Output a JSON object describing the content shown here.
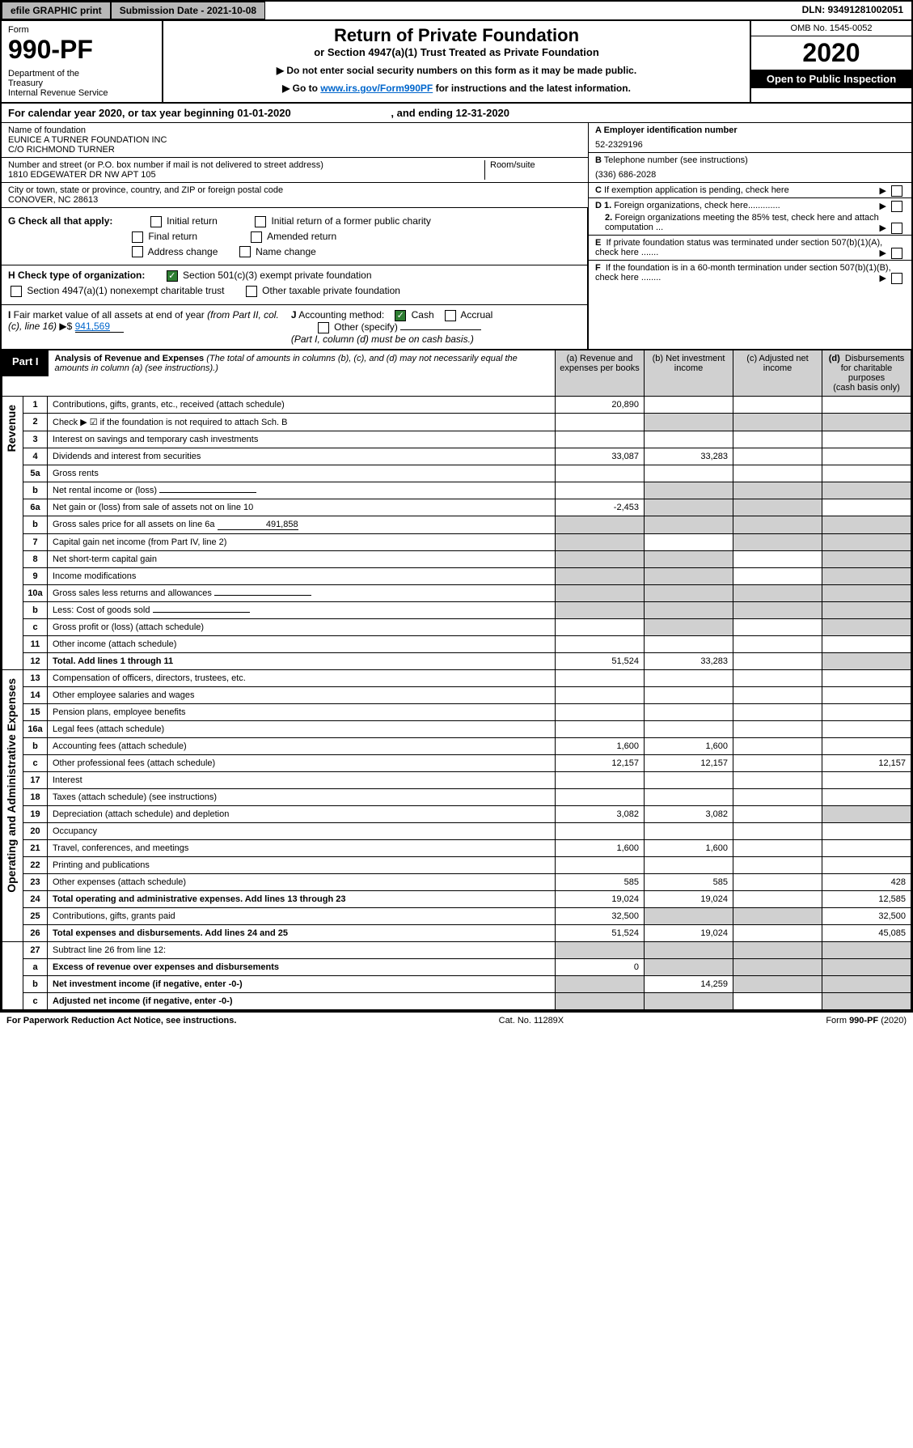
{
  "topbar": {
    "efile": "efile GRAPHIC print",
    "subdate": "Submission Date - 2021-10-08",
    "dln": "DLN: 93491281002051"
  },
  "header": {
    "form_label": "Form",
    "form_num": "990-PF",
    "dept": "Department of the Treasury\nInternal Revenue Service",
    "title": "Return of Private Foundation",
    "subtitle": "or Section 4947(a)(1) Trust Treated as Private Foundation",
    "note1": "▶ Do not enter social security numbers on this form as it may be made public.",
    "note2": "▶ Go to ",
    "link": "www.irs.gov/Form990PF",
    "note3": " for instructions and the latest information.",
    "omb": "OMB No. 1545-0052",
    "year": "2020",
    "open": "Open to Public Inspection"
  },
  "calyear": {
    "text1": "For calendar year 2020, or tax year beginning 01-01-2020",
    "text2": ", and ending 12-31-2020"
  },
  "info": {
    "name_label": "Name of foundation",
    "name": "EUNICE A TURNER FOUNDATION INC\nC/O RICHMOND TURNER",
    "addr_label": "Number and street (or P.O. box number if mail is not delivered to street address)",
    "addr": "1810 EDGEWATER DR NW APT 105",
    "room_label": "Room/suite",
    "city_label": "City or town, state or province, country, and ZIP or foreign postal code",
    "city": "CONOVER, NC  28613",
    "a_label": "A Employer identification number",
    "a_val": "52-2329196",
    "b_label": "B Telephone number (see instructions)",
    "b_val": "(336) 686-2028",
    "c_label": "C If exemption application is pending, check here",
    "d1": "D 1. Foreign organizations, check here.............",
    "d2": "2. Foreign organizations meeting the 85% test, check here and attach computation ...",
    "e": "E  If private foundation status was terminated under section 507(b)(1)(A), check here .......",
    "f": "F  If the foundation is in a 60-month termination under section 507(b)(1)(B), check here ........"
  },
  "g": {
    "label": "G Check all that apply:",
    "opts": [
      "Initial return",
      "Initial return of a former public charity",
      "Final return",
      "Amended return",
      "Address change",
      "Name change"
    ]
  },
  "h": {
    "label": "H Check type of organization:",
    "opt1": "Section 501(c)(3) exempt private foundation",
    "opt2": "Section 4947(a)(1) nonexempt charitable trust",
    "opt3": "Other taxable private foundation"
  },
  "i": {
    "label": "I Fair market value of all assets at end of year (from Part II, col. (c), line 16) ▶$",
    "val": "941,569"
  },
  "j": {
    "label": "J Accounting method:",
    "cash": "Cash",
    "accrual": "Accrual",
    "other": "Other (specify)",
    "note": "(Part I, column (d) must be on cash basis.)"
  },
  "part1": {
    "label": "Part I",
    "title": "Analysis of Revenue and Expenses",
    "subtitle": "(The total of amounts in columns (b), (c), and (d) may not necessarily equal the amounts in column (a) (see instructions).)",
    "col_a": "(a)    Revenue and expenses per books",
    "col_b": "(b)  Net investment income",
    "col_c": "(c)  Adjusted net income",
    "col_d": "(d)  Disbursements for charitable purposes (cash basis only)"
  },
  "sections": {
    "revenue": "Revenue",
    "expenses": "Operating and Administrative Expenses"
  },
  "lines": [
    {
      "n": "1",
      "d": "Contributions, gifts, grants, etc., received (attach schedule)",
      "a": "20,890",
      "b": "",
      "c": "",
      "ds": ""
    },
    {
      "n": "2",
      "d": "Check ▶ ☑ if the foundation is not required to attach Sch. B",
      "a": "",
      "b": "",
      "c": "",
      "ds": "",
      "shb": true,
      "shc": true,
      "shd": true
    },
    {
      "n": "3",
      "d": "Interest on savings and temporary cash investments",
      "a": "",
      "b": "",
      "c": "",
      "ds": ""
    },
    {
      "n": "4",
      "d": "Dividends and interest from securities",
      "a": "33,087",
      "b": "33,283",
      "c": "",
      "ds": ""
    },
    {
      "n": "5a",
      "d": "Gross rents",
      "a": "",
      "b": "",
      "c": "",
      "ds": ""
    },
    {
      "n": "b",
      "d": "Net rental income or (loss)",
      "a": "",
      "b": "",
      "c": "",
      "ds": "",
      "shb": true,
      "shc": true,
      "shd": true,
      "inline": true
    },
    {
      "n": "6a",
      "d": "Net gain or (loss) from sale of assets not on line 10",
      "a": "-2,453",
      "b": "",
      "c": "",
      "ds": "",
      "shb": true,
      "shc": true
    },
    {
      "n": "b",
      "d": "Gross sales price for all assets on line 6a",
      "inline_val": "491,858",
      "a": "",
      "b": "",
      "c": "",
      "ds": "",
      "shb": true,
      "shc": true,
      "shd": true,
      "sha": true
    },
    {
      "n": "7",
      "d": "Capital gain net income (from Part IV, line 2)",
      "a": "",
      "b": "",
      "c": "",
      "ds": "",
      "sha": true,
      "shc": true,
      "shd": true
    },
    {
      "n": "8",
      "d": "Net short-term capital gain",
      "a": "",
      "b": "",
      "c": "",
      "ds": "",
      "sha": true,
      "shb": true,
      "shd": true
    },
    {
      "n": "9",
      "d": "Income modifications",
      "a": "",
      "b": "",
      "c": "",
      "ds": "",
      "sha": true,
      "shb": true,
      "shd": true
    },
    {
      "n": "10a",
      "d": "Gross sales less returns and allowances",
      "a": "",
      "b": "",
      "c": "",
      "ds": "",
      "sha": true,
      "shb": true,
      "shc": true,
      "shd": true,
      "inline": true
    },
    {
      "n": "b",
      "d": "Less: Cost of goods sold",
      "a": "",
      "b": "",
      "c": "",
      "ds": "",
      "sha": true,
      "shb": true,
      "shc": true,
      "shd": true,
      "inline": true
    },
    {
      "n": "c",
      "d": "Gross profit or (loss) (attach schedule)",
      "a": "",
      "b": "",
      "c": "",
      "ds": "",
      "shb": true,
      "shd": true
    },
    {
      "n": "11",
      "d": "Other income (attach schedule)",
      "a": "",
      "b": "",
      "c": "",
      "ds": ""
    },
    {
      "n": "12",
      "d": "Total. Add lines 1 through 11",
      "a": "51,524",
      "b": "33,283",
      "c": "",
      "ds": "",
      "bold": true,
      "shd": true
    }
  ],
  "exp_lines": [
    {
      "n": "13",
      "d": "Compensation of officers, directors, trustees, etc.",
      "a": "",
      "b": "",
      "c": "",
      "ds": ""
    },
    {
      "n": "14",
      "d": "Other employee salaries and wages",
      "a": "",
      "b": "",
      "c": "",
      "ds": ""
    },
    {
      "n": "15",
      "d": "Pension plans, employee benefits",
      "a": "",
      "b": "",
      "c": "",
      "ds": ""
    },
    {
      "n": "16a",
      "d": "Legal fees (attach schedule)",
      "a": "",
      "b": "",
      "c": "",
      "ds": ""
    },
    {
      "n": "b",
      "d": "Accounting fees (attach schedule)",
      "a": "1,600",
      "b": "1,600",
      "c": "",
      "ds": ""
    },
    {
      "n": "c",
      "d": "Other professional fees (attach schedule)",
      "a": "12,157",
      "b": "12,157",
      "c": "",
      "ds": "12,157"
    },
    {
      "n": "17",
      "d": "Interest",
      "a": "",
      "b": "",
      "c": "",
      "ds": ""
    },
    {
      "n": "18",
      "d": "Taxes (attach schedule) (see instructions)",
      "a": "",
      "b": "",
      "c": "",
      "ds": ""
    },
    {
      "n": "19",
      "d": "Depreciation (attach schedule) and depletion",
      "a": "3,082",
      "b": "3,082",
      "c": "",
      "ds": "",
      "shd": true
    },
    {
      "n": "20",
      "d": "Occupancy",
      "a": "",
      "b": "",
      "c": "",
      "ds": ""
    },
    {
      "n": "21",
      "d": "Travel, conferences, and meetings",
      "a": "1,600",
      "b": "1,600",
      "c": "",
      "ds": ""
    },
    {
      "n": "22",
      "d": "Printing and publications",
      "a": "",
      "b": "",
      "c": "",
      "ds": ""
    },
    {
      "n": "23",
      "d": "Other expenses (attach schedule)",
      "a": "585",
      "b": "585",
      "c": "",
      "ds": "428"
    },
    {
      "n": "24",
      "d": "Total operating and administrative expenses. Add lines 13 through 23",
      "a": "19,024",
      "b": "19,024",
      "c": "",
      "ds": "12,585",
      "bold": true
    },
    {
      "n": "25",
      "d": "Contributions, gifts, grants paid",
      "a": "32,500",
      "b": "",
      "c": "",
      "ds": "32,500",
      "shb": true,
      "shc": true
    },
    {
      "n": "26",
      "d": "Total expenses and disbursements. Add lines 24 and 25",
      "a": "51,524",
      "b": "19,024",
      "c": "",
      "ds": "45,085",
      "bold": true
    }
  ],
  "line27": [
    {
      "n": "27",
      "d": "Subtract line 26 from line 12:",
      "a": "",
      "b": "",
      "c": "",
      "ds": "",
      "sha": true,
      "shb": true,
      "shc": true,
      "shd": true
    },
    {
      "n": "a",
      "d": "Excess of revenue over expenses and disbursements",
      "a": "0",
      "b": "",
      "c": "",
      "ds": "",
      "bold": true,
      "shb": true,
      "shc": true,
      "shd": true
    },
    {
      "n": "b",
      "d": "Net investment income (if negative, enter -0-)",
      "a": "",
      "b": "14,259",
      "c": "",
      "ds": "",
      "bold": true,
      "sha": true,
      "shc": true,
      "shd": true
    },
    {
      "n": "c",
      "d": "Adjusted net income (if negative, enter -0-)",
      "a": "",
      "b": "",
      "c": "",
      "ds": "",
      "bold": true,
      "sha": true,
      "shb": true,
      "shd": true
    }
  ],
  "footer": {
    "left": "For Paperwork Reduction Act Notice, see instructions.",
    "mid": "Cat. No. 11289X",
    "right": "Form 990-PF (2020)"
  }
}
